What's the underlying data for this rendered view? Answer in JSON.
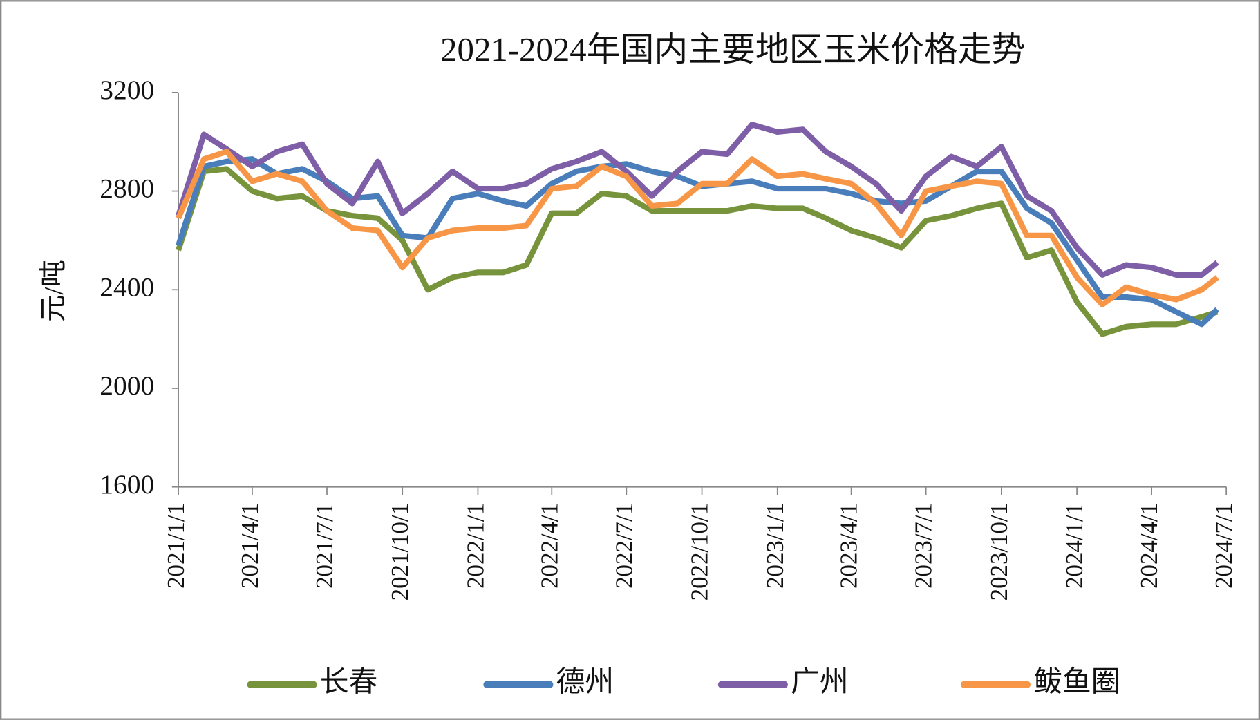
{
  "chart_data": {
    "type": "line",
    "title": "2021-2024年国内主要地区玉米价格走势",
    "y_label": "元/吨",
    "x": [
      "2021/1/1",
      "2021/2/1",
      "2021/3/1",
      "2021/4/1",
      "2021/5/1",
      "2021/6/1",
      "2021/7/1",
      "2021/8/1",
      "2021/9/1",
      "2021/10/1",
      "2021/11/1",
      "2021/12/1",
      "2022/1/1",
      "2022/2/1",
      "2022/3/1",
      "2022/4/1",
      "2022/5/1",
      "2022/6/1",
      "2022/7/1",
      "2022/8/1",
      "2022/9/1",
      "2022/10/1",
      "2022/11/1",
      "2022/12/1",
      "2023/1/1",
      "2023/2/1",
      "2023/3/1",
      "2023/4/1",
      "2023/5/1",
      "2023/6/1",
      "2023/7/1",
      "2023/8/1",
      "2023/9/1",
      "2023/10/1",
      "2023/11/1",
      "2023/12/1",
      "2024/1/1",
      "2024/2/1",
      "2024/3/1",
      "2024/4/1",
      "2024/5/1",
      "2024/6/1",
      "2024/6/20"
    ],
    "series": [
      {
        "name": "长春",
        "color": "#77933c",
        "values": [
          2560,
          2880,
          2890,
          2800,
          2770,
          2780,
          2720,
          2700,
          2690,
          2600,
          2400,
          2450,
          2470,
          2470,
          2500,
          2710,
          2710,
          2790,
          2780,
          2720,
          2720,
          2720,
          2720,
          2740,
          2730,
          2730,
          2690,
          2640,
          2610,
          2570,
          2680,
          2700,
          2730,
          2750,
          2530,
          2560,
          2350,
          2220,
          2250,
          2260,
          2260,
          2290,
          2310
        ]
      },
      {
        "name": "德州",
        "color": "#4a7ebb",
        "values": [
          2580,
          2900,
          2920,
          2930,
          2870,
          2890,
          2840,
          2770,
          2780,
          2620,
          2610,
          2770,
          2790,
          2760,
          2740,
          2830,
          2880,
          2900,
          2910,
          2880,
          2860,
          2820,
          2830,
          2840,
          2810,
          2810,
          2810,
          2790,
          2760,
          2750,
          2760,
          2820,
          2880,
          2880,
          2730,
          2670,
          2520,
          2370,
          2370,
          2360,
          2310,
          2260,
          2320
        ]
      },
      {
        "name": "广州",
        "color": "#7e5ea6",
        "values": [
          2700,
          3030,
          2970,
          2900,
          2960,
          2990,
          2830,
          2750,
          2920,
          2710,
          2790,
          2880,
          2810,
          2810,
          2830,
          2890,
          2920,
          2960,
          2880,
          2780,
          2880,
          2960,
          2950,
          3070,
          3040,
          3050,
          2960,
          2900,
          2830,
          2720,
          2860,
          2940,
          2900,
          2980,
          2780,
          2720,
          2570,
          2460,
          2500,
          2490,
          2460,
          2460,
          2510
        ]
      },
      {
        "name": "鲅鱼圈",
        "color": "#f79646",
        "values": [
          2690,
          2930,
          2960,
          2840,
          2870,
          2840,
          2720,
          2650,
          2640,
          2490,
          2610,
          2640,
          2650,
          2650,
          2660,
          2810,
          2820,
          2900,
          2860,
          2740,
          2750,
          2830,
          2830,
          2930,
          2860,
          2870,
          2850,
          2830,
          2750,
          2620,
          2800,
          2820,
          2840,
          2830,
          2620,
          2620,
          2450,
          2340,
          2410,
          2380,
          2360,
          2400,
          2450
        ]
      }
    ],
    "xlim": [
      "2021/1/1",
      "2024/7/1"
    ],
    "xticks": [
      "2021/1/1",
      "2021/4/1",
      "2021/7/1",
      "2021/10/1",
      "2022/1/1",
      "2022/4/1",
      "2022/7/1",
      "2022/10/1",
      "2023/1/1",
      "2023/4/1",
      "2023/7/1",
      "2023/10/1",
      "2024/1/1",
      "2024/4/1",
      "2024/7/1"
    ],
    "ylim": [
      1600,
      3200
    ],
    "yticks": [
      1600,
      2000,
      2400,
      2800,
      3200
    ],
    "legend": "bottom"
  }
}
